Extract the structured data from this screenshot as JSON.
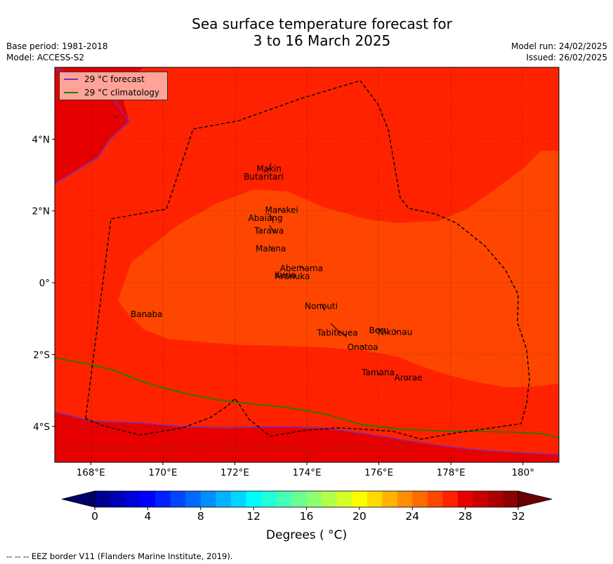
{
  "title": {
    "line1": "Sea surface temperature forecast for",
    "line2": "3 to 16 March 2025"
  },
  "meta_left": {
    "base_period": "Base period: 1981-2018",
    "model": "Model: ACCESS-S2"
  },
  "meta_right": {
    "model_run": "Model run: 24/02/2025",
    "issued": "Issued: 26/02/2025"
  },
  "map": {
    "lon_range": [
      167,
      181
    ],
    "lat_range": [
      -5,
      6
    ],
    "x_ticks": [
      {
        "value": 168,
        "label": "168°E"
      },
      {
        "value": 170,
        "label": "170°E"
      },
      {
        "value": 172,
        "label": "172°E"
      },
      {
        "value": 174,
        "label": "174°E"
      },
      {
        "value": 176,
        "label": "176°E"
      },
      {
        "value": 178,
        "label": "178°E"
      },
      {
        "value": 180,
        "label": "180°"
      }
    ],
    "y_ticks": [
      {
        "value": 4,
        "label": "4°N"
      },
      {
        "value": 2,
        "label": "2°N"
      },
      {
        "value": 0,
        "label": "0°"
      },
      {
        "value": -2,
        "label": "2°S"
      },
      {
        "value": -4,
        "label": "4°S"
      }
    ],
    "grid": true,
    "islands": [
      {
        "name": "Makin",
        "lon": 172.95,
        "lat": 3.18
      },
      {
        "name": "Butaritari",
        "lon": 172.8,
        "lat": 2.95
      },
      {
        "name": "Marakei",
        "lon": 173.3,
        "lat": 2.02
      },
      {
        "name": "Abaiang",
        "lon": 172.85,
        "lat": 1.8
      },
      {
        "name": "Tarawa",
        "lon": 172.95,
        "lat": 1.45
      },
      {
        "name": "Maiana",
        "lon": 173.0,
        "lat": 0.95
      },
      {
        "name": "Abemama",
        "lon": 173.85,
        "lat": 0.4
      },
      {
        "name": "Kuria",
        "lon": 173.4,
        "lat": 0.22
      },
      {
        "name": "Aranuka",
        "lon": 173.6,
        "lat": 0.18
      },
      {
        "name": "Nonouti",
        "lon": 174.4,
        "lat": -0.65
      },
      {
        "name": "Banaba",
        "lon": 169.55,
        "lat": -0.88
      },
      {
        "name": "Beru",
        "lon": 176.0,
        "lat": -1.33
      },
      {
        "name": "Nikunau",
        "lon": 176.45,
        "lat": -1.38
      },
      {
        "name": "Tabiteuea",
        "lon": 174.85,
        "lat": -1.4
      },
      {
        "name": "Onotoa",
        "lon": 175.55,
        "lat": -1.8
      },
      {
        "name": "Tamana",
        "lon": 175.98,
        "lat": -2.5
      },
      {
        "name": "Arorae",
        "lon": 176.82,
        "lat": -2.65
      }
    ]
  },
  "legend": {
    "forecast_label": "29 °C  forecast",
    "climatology_label": "29 °C  climatology",
    "forecast_color": "#7a2fb5",
    "climatology_color": "#1a7d00"
  },
  "copyright": "© Commonwealth of Australia 2025, Bureau of Meteorology, supported by COSPPac",
  "colorbar": {
    "min": 0,
    "max": 32,
    "step": 1,
    "tick_labels": [
      "0",
      "4",
      "8",
      "12",
      "16",
      "20",
      "24",
      "28",
      "32"
    ],
    "colors": [
      "#00008f",
      "#0000b4",
      "#0000da",
      "#0000ff",
      "#0022ff",
      "#0046ff",
      "#006aff",
      "#008eff",
      "#00b2ff",
      "#00d6ff",
      "#00fcff",
      "#22ffdd",
      "#46ffb8",
      "#6aff94",
      "#8eff70",
      "#b2ff4c",
      "#d6ff28",
      "#fcfc00",
      "#ffda00",
      "#ffb400",
      "#ff8e00",
      "#ff6a00",
      "#ff4600",
      "#ff2200",
      "#e60000",
      "#c80000",
      "#aa0000",
      "#8c0000"
    ],
    "under_color": "#00006a",
    "over_color": "#6a0000",
    "label": "Degrees ( °C)"
  },
  "footer": "--  --  -- EEZ border V11 (Flanders Marine Institute, 2019)."
}
